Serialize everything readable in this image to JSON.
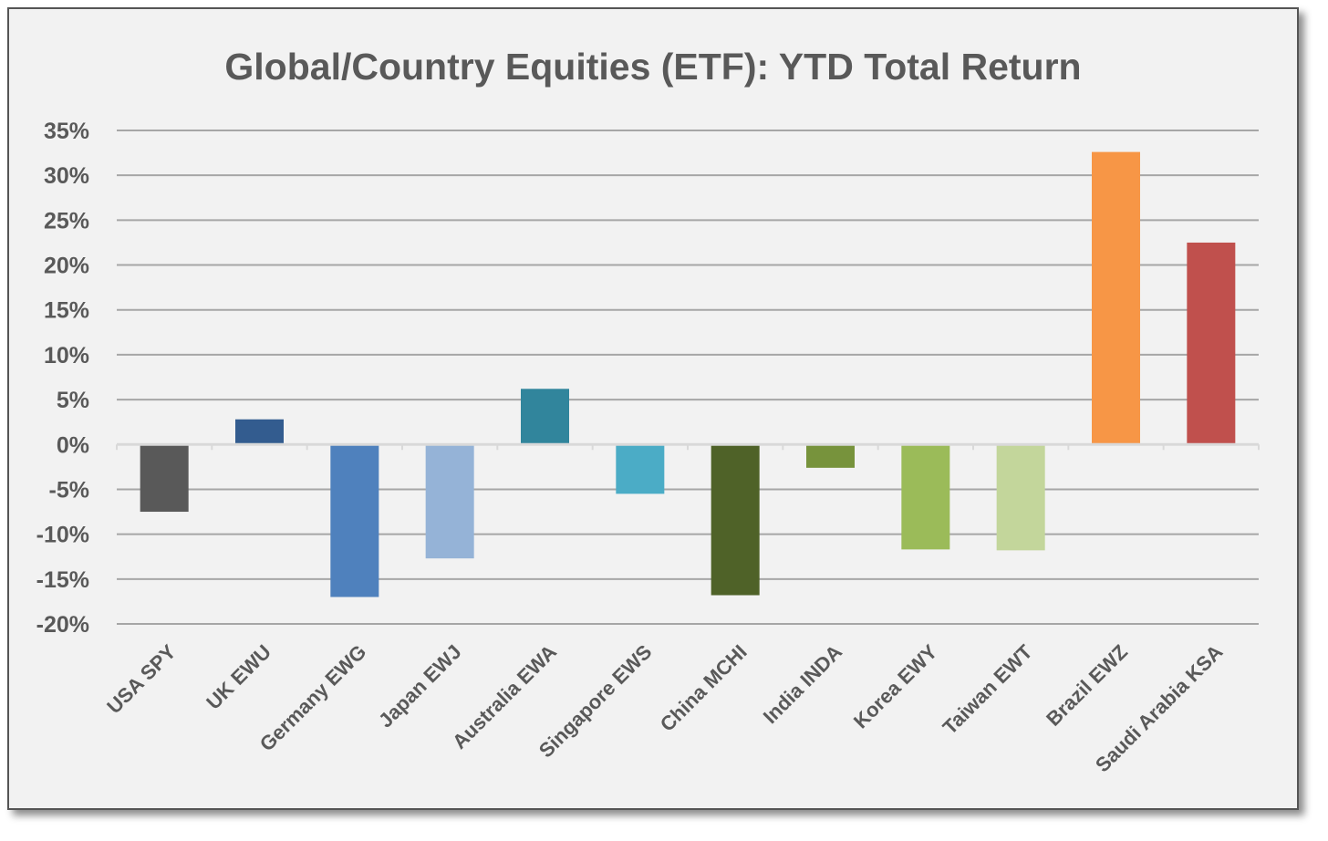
{
  "chart_data": {
    "type": "bar",
    "title": "Global/Country Equities (ETF): YTD Total Return",
    "xlabel": "",
    "ylabel": "",
    "ylim": [
      -20,
      35
    ],
    "y_ticks": [
      "35%",
      "30%",
      "25%",
      "20%",
      "15%",
      "10%",
      "5%",
      "0%",
      "-5%",
      "-10%",
      "-15%",
      "-20%"
    ],
    "y_tick_values": [
      35,
      30,
      25,
      20,
      15,
      10,
      5,
      0,
      -5,
      -10,
      -15,
      -20
    ],
    "grid": true,
    "legend": "none",
    "categories": [
      "USA SPY",
      "UK EWU",
      "Germany EWG",
      "Japan EWJ",
      "Australia EWA",
      "Singapore EWS",
      "China MCHI",
      "India INDA",
      "Korea EWY",
      "Taiwan EWT",
      "Brazil EWZ",
      "Saudi Arabia KSA"
    ],
    "values": [
      -7.5,
      2.8,
      -17.0,
      -12.7,
      6.2,
      -5.5,
      -16.8,
      -2.6,
      -11.7,
      -11.8,
      32.6,
      22.5
    ],
    "colors": [
      "#595959",
      "#335c8f",
      "#4f81bd",
      "#95b3d7",
      "#31859c",
      "#4bacc6",
      "#4f6228",
      "#77933c",
      "#9bbb59",
      "#c3d69b",
      "#f79646",
      "#c0504d"
    ]
  }
}
